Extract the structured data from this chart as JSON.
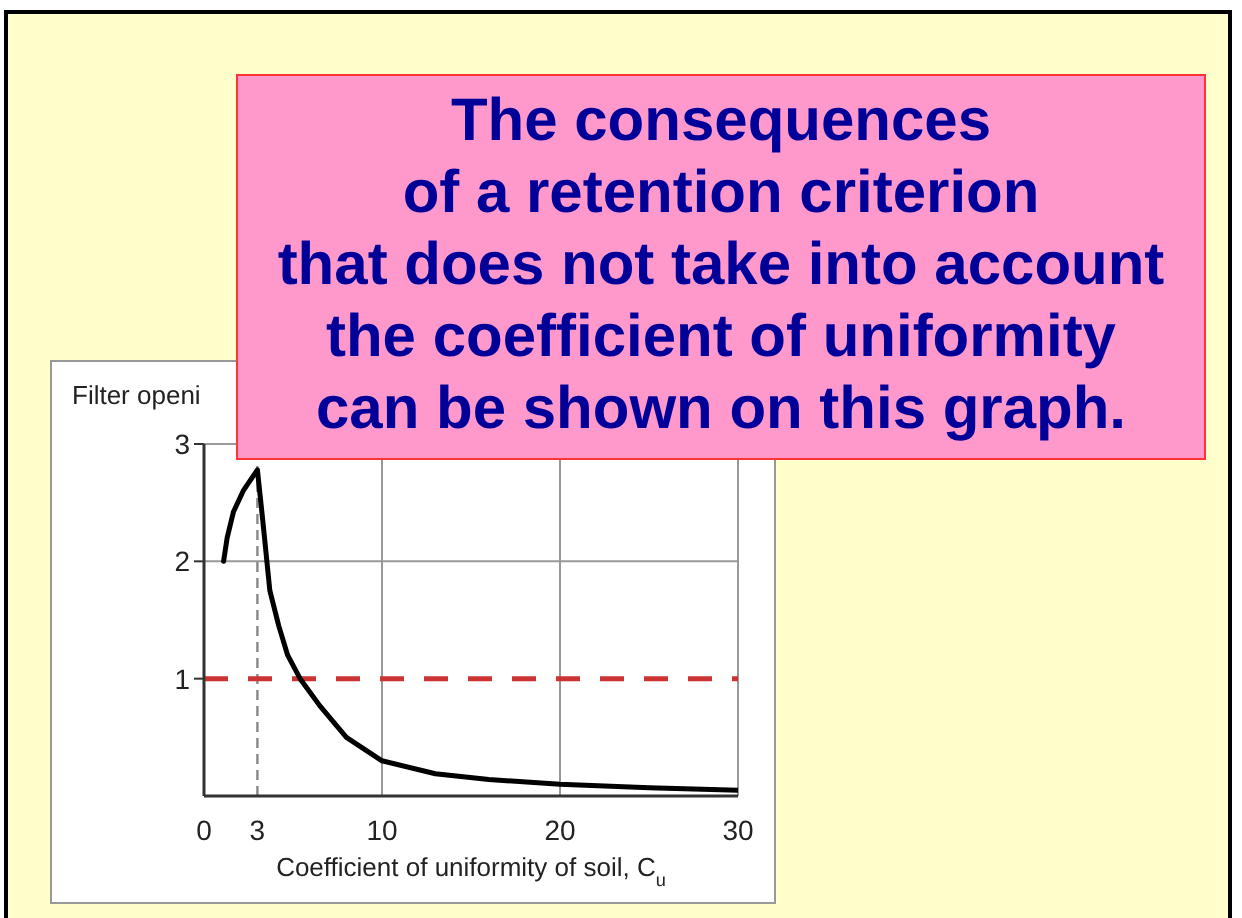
{
  "chart_data": {
    "type": "line",
    "ylabel": "Filter openi",
    "xlabel": "Coefficient of uniformity of soil, C$_{u}$",
    "annotations": [
      "The consequences\nof a retention criterion\nthat does not take into account\nthe coefficient of uniformity\ncan be shown on this graph."
    ],
    "x": [
      1.1,
      1.3,
      1.65,
      2.2,
      3,
      3.3,
      3.7,
      4.2,
      4.7,
      5.4,
      6.5,
      8,
      10,
      13,
      16,
      20,
      25,
      30
    ],
    "series": [
      {
        "color": "#000000",
        "values": [
          2.0,
          2.2,
          2.42,
          2.6,
          2.78,
          2.35,
          1.75,
          1.45,
          1.2,
          1.0,
          0.77,
          0.5,
          0.3,
          0.19,
          0.14,
          0.1,
          0.07,
          0.05
        ]
      }
    ],
    "xlim": [
      0,
      30
    ],
    "xticks": [
      0,
      3,
      10,
      20,
      30
    ],
    "ylim": [
      0,
      3
    ],
    "yticks": [
      1,
      2,
      3
    ],
    "grid": true,
    "marker": "none",
    "line_style": "solid",
    "ref_lines": [
      {
        "axis": "x",
        "value": 3,
        "color": "#888888",
        "line_style": "dashed"
      },
      {
        "axis": "y",
        "value": 1,
        "color": "#cc3333",
        "line_style": "dashed"
      }
    ]
  }
}
